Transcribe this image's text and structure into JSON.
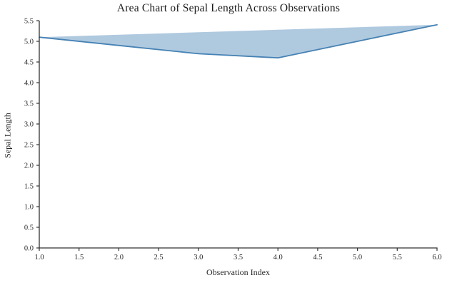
{
  "chart_data": {
    "type": "area",
    "title": "Area Chart of Sepal Length Across Observations",
    "xlabel": "Observation Index",
    "ylabel": "Sepal Length",
    "series": [
      {
        "name": "Sepal Length",
        "x": [
          1,
          2,
          3,
          4,
          5,
          6
        ],
        "values": [
          5.1,
          4.9,
          4.7,
          4.6,
          5.0,
          5.4
        ]
      }
    ],
    "xlim": [
      1.0,
      6.0
    ],
    "ylim": [
      0.0,
      5.5
    ],
    "x_tick_labels": [
      "1.0",
      "1.5",
      "2.0",
      "2.5",
      "3.0",
      "3.5",
      "4.0",
      "4.5",
      "5.0",
      "5.5",
      "6.0"
    ],
    "y_tick_labels": [
      "0.0",
      "0.5",
      "1.0",
      "1.5",
      "2.0",
      "2.5",
      "3.0",
      "3.5",
      "4.0",
      "4.5",
      "5.0",
      "5.5"
    ],
    "x_ticks": [
      1.0,
      1.5,
      2.0,
      2.5,
      3.0,
      3.5,
      4.0,
      4.5,
      5.0,
      5.5,
      6.0
    ],
    "y_ticks": [
      0.0,
      0.5,
      1.0,
      1.5,
      2.0,
      2.5,
      3.0,
      3.5,
      4.0,
      4.5,
      5.0,
      5.5
    ],
    "grid": false,
    "legend": "none",
    "fill_style": "closed-polygon",
    "colors": {
      "line": "#4682b4",
      "fill": "rgba(70,130,180,0.43)",
      "axis": "#333333",
      "text": "#262626",
      "background": "#ffffff"
    }
  }
}
